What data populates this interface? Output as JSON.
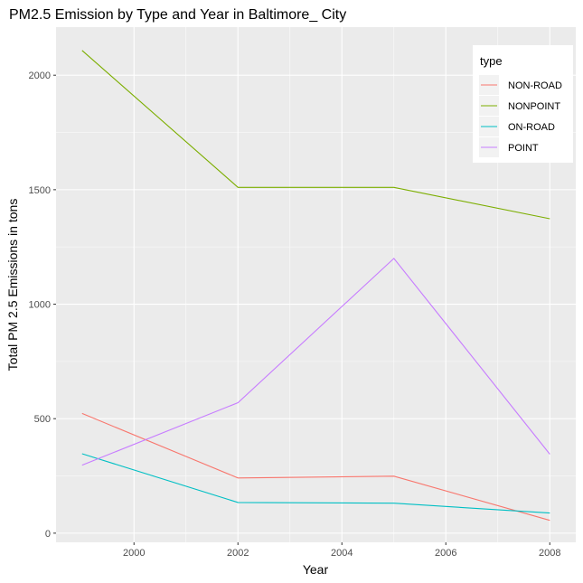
{
  "chart_data": {
    "type": "line",
    "title": "PM2.5 Emission by Type and Year in Baltimore_ City",
    "xlabel": "Year",
    "ylabel": "Total PM 2.5 Emissions in tons",
    "x": [
      1999,
      2002,
      2005,
      2008
    ],
    "xlim": [
      1998.5,
      2008.5
    ],
    "ylim": [
      -40,
      2210
    ],
    "xticks": [
      2000,
      2002,
      2004,
      2006,
      2008
    ],
    "yticks": [
      0,
      500,
      1000,
      1500,
      2000
    ],
    "grid": true,
    "legend_title": "type",
    "legend_position": "top-right",
    "panel_background": "#ebebeb",
    "series": [
      {
        "name": "NON-ROAD",
        "color": "#f8766d",
        "values": [
          523,
          241,
          249,
          56
        ]
      },
      {
        "name": "NONPOINT",
        "color": "#7cae00",
        "values": [
          2108,
          1510,
          1510,
          1373
        ]
      },
      {
        "name": "ON-ROAD",
        "color": "#00bfc4",
        "values": [
          347,
          134,
          131,
          88
        ]
      },
      {
        "name": "POINT",
        "color": "#c77cff",
        "values": [
          297,
          570,
          1200,
          345
        ]
      }
    ]
  }
}
